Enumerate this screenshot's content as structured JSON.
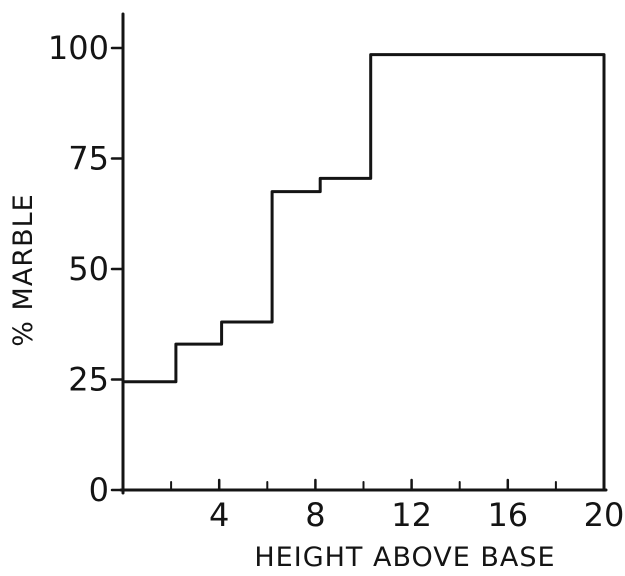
{
  "chart_data": {
    "type": "line",
    "step": true,
    "xlabel": "HEIGHT ABOVE BASE",
    "ylabel": "% MARBLE",
    "xlim": [
      0,
      20
    ],
    "ylim": [
      0,
      100
    ],
    "x_tick_labels": [
      "4",
      "8",
      "12",
      "16",
      "20"
    ],
    "x_tick_values": [
      4,
      8,
      12,
      16,
      20
    ],
    "x_minor_ticks": [
      2,
      6,
      10,
      14,
      18
    ],
    "y_tick_labels": [
      "0",
      "25",
      "50",
      "75",
      "100"
    ],
    "y_tick_values": [
      0,
      25,
      50,
      75,
      100
    ],
    "grid": false,
    "series": [
      {
        "points": [
          {
            "x": 0,
            "y": 24.5
          },
          {
            "x": 2.2,
            "y": 24.5
          },
          {
            "x": 2.2,
            "y": 33
          },
          {
            "x": 4.1,
            "y": 33
          },
          {
            "x": 4.1,
            "y": 38
          },
          {
            "x": 6.2,
            "y": 38
          },
          {
            "x": 6.2,
            "y": 67.5
          },
          {
            "x": 8.2,
            "y": 67.5
          },
          {
            "x": 8.2,
            "y": 70.5
          },
          {
            "x": 10.3,
            "y": 70.5
          },
          {
            "x": 10.3,
            "y": 98.5
          },
          {
            "x": 20,
            "y": 98.5
          },
          {
            "x": 20,
            "y": 0
          }
        ]
      }
    ]
  }
}
